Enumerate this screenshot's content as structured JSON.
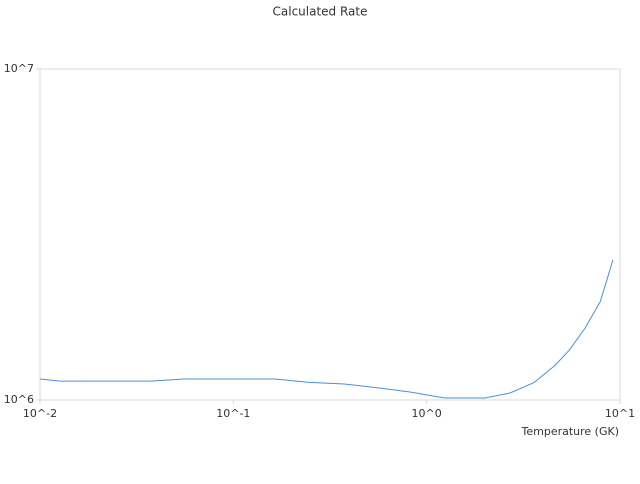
{
  "chart_data": {
    "type": "line",
    "title": "Calculated Rate",
    "x_label": "Temperature (GK)",
    "x_scale": "log",
    "y_scale": "log",
    "xlim": [
      0.01,
      10
    ],
    "ylim": [
      1000000,
      10000000
    ],
    "xticks": [
      {
        "value": 0.01,
        "label": "10^-2"
      },
      {
        "value": 0.1,
        "label": "10^-1"
      },
      {
        "value": 1,
        "label": "10^0"
      },
      {
        "value": 10,
        "label": "10^1"
      }
    ],
    "yticks": [
      {
        "value": 1000000,
        "label": "10^6"
      },
      {
        "value": 10000000,
        "label": "10^7"
      }
    ],
    "series": [
      {
        "color": "#4a90d9",
        "x": [
          0.01,
          0.0127,
          0.037,
          0.056,
          0.164,
          0.248,
          0.375,
          0.57,
          0.82,
          1.24,
          2.0,
          2.7,
          3.6,
          4.6,
          5.5,
          6.6,
          7.9,
          9.2
        ],
        "values": [
          1157000,
          1140000,
          1140000,
          1157000,
          1157000,
          1130000,
          1118000,
          1087000,
          1057000,
          1014000,
          1014000,
          1050000,
          1130000,
          1270000,
          1420000,
          1650000,
          1980000,
          2650000
        ]
      }
    ]
  }
}
